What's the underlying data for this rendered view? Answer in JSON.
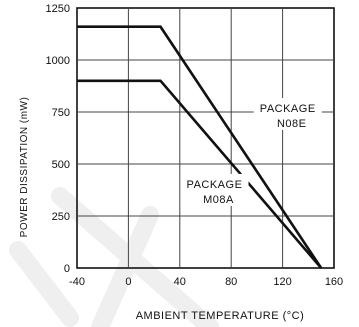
{
  "chart_data": {
    "type": "line",
    "title": "",
    "xlabel": "AMBIENT TEMPERATURE (°C)",
    "ylabel": "POWER DISSIPATION (mW)",
    "xlim": [
      -40,
      160
    ],
    "ylim": [
      0,
      1250
    ],
    "x_ticks": [
      "-40",
      "0",
      "40",
      "80",
      "120",
      "160"
    ],
    "y_ticks": [
      "0",
      "250",
      "500",
      "750",
      "1000",
      "1250"
    ],
    "x_tick_values": [
      -40,
      0,
      40,
      80,
      120,
      160
    ],
    "y_tick_values": [
      0,
      250,
      500,
      750,
      1000,
      1250
    ],
    "grid": true,
    "series": [
      {
        "name": "PACKAGE N08E",
        "x": [
          -40,
          25,
          150
        ],
        "y": [
          1160,
          1160,
          0
        ]
      },
      {
        "name": "PACKAGE M08A",
        "x": [
          -40,
          25,
          150
        ],
        "y": [
          900,
          900,
          0
        ]
      }
    ],
    "annotations": [
      {
        "lines": [
          "PACKAGE",
          "N08E"
        ],
        "x": 124,
        "y": 750
      },
      {
        "lines": [
          "PACKAGE",
          "M08A"
        ],
        "x": 67,
        "y": 385
      }
    ]
  },
  "colors": {
    "line": "#111111",
    "grid": "#444444",
    "background": "#ffffff",
    "watermark": "#eeeeee"
  }
}
